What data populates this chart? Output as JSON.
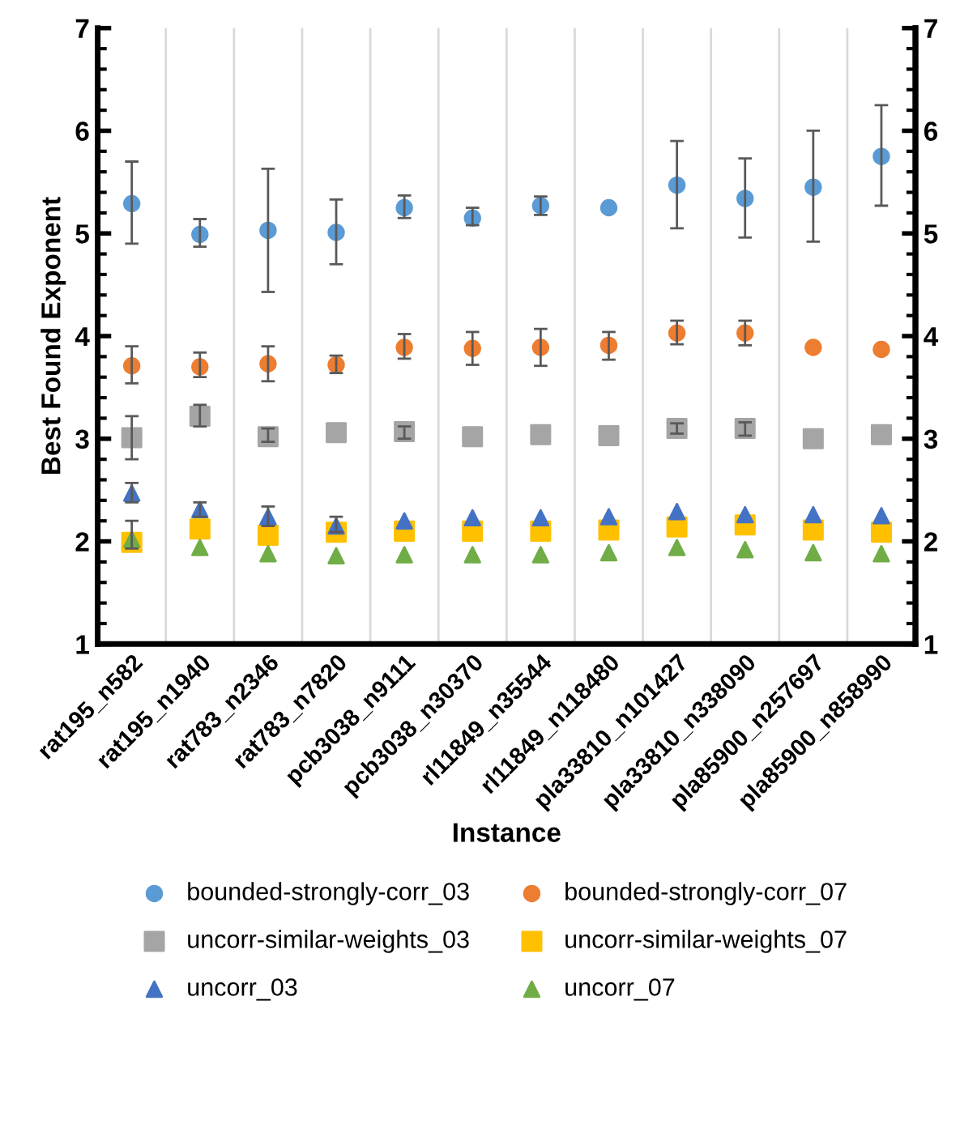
{
  "chart_data": {
    "type": "scatter",
    "xlabel": "Instance",
    "ylabel": "Best Found Exponent",
    "categories": [
      "rat195_n582",
      "rat195_n1940",
      "rat783_n2346",
      "rat783_n7820",
      "pcb3038_n9111",
      "pcb3038_n30370",
      "rl11849_n35544",
      "rl11849_n118480",
      "pla33810_n101427",
      "pla33810_n338090",
      "pla85900_n257697",
      "pla85900_n858990"
    ],
    "series": [
      {
        "name": "bounded-strongly-corr_03",
        "color": "#5b9bd5",
        "marker": "circle",
        "values": [
          5.29,
          4.99,
          5.03,
          5.01,
          5.25,
          5.15,
          5.27,
          5.25,
          5.47,
          5.34,
          5.45,
          5.75
        ],
        "errors": [
          [
            4.9,
            5.7
          ],
          [
            4.87,
            5.14
          ],
          [
            4.43,
            5.63
          ],
          [
            4.7,
            5.33
          ],
          [
            5.15,
            5.37
          ],
          [
            5.08,
            5.25
          ],
          [
            5.18,
            5.36
          ],
          null,
          [
            5.05,
            5.9
          ],
          [
            4.96,
            5.73
          ],
          [
            4.92,
            6.0
          ],
          [
            5.27,
            6.25
          ]
        ]
      },
      {
        "name": "bounded-strongly-corr_07",
        "color": "#ed7d31",
        "marker": "circle",
        "values": [
          3.71,
          3.7,
          3.73,
          3.72,
          3.89,
          3.88,
          3.89,
          3.91,
          4.03,
          4.03,
          3.89,
          3.87
        ],
        "errors": [
          [
            3.54,
            3.9
          ],
          [
            3.6,
            3.84
          ],
          [
            3.56,
            3.9
          ],
          [
            3.64,
            3.81
          ],
          [
            3.78,
            4.02
          ],
          [
            3.72,
            4.04
          ],
          [
            3.71,
            4.07
          ],
          [
            3.77,
            4.04
          ],
          [
            3.92,
            4.15
          ],
          [
            3.91,
            4.15
          ],
          null,
          null
        ]
      },
      {
        "name": "uncorr-similar-weights_03",
        "color": "#a5a5a5",
        "marker": "square",
        "values": [
          3.01,
          3.22,
          3.02,
          3.06,
          3.07,
          3.02,
          3.04,
          3.03,
          3.1,
          3.1,
          3.0,
          3.04
        ],
        "errors": [
          [
            2.8,
            3.22
          ],
          [
            3.12,
            3.33
          ],
          [
            2.97,
            3.1
          ],
          null,
          [
            3.0,
            3.12
          ],
          null,
          null,
          null,
          [
            3.05,
            3.15
          ],
          [
            3.03,
            3.16
          ],
          null,
          null
        ]
      },
      {
        "name": "uncorr-similar-weights_07",
        "color": "#ffc000",
        "marker": "square",
        "values": [
          1.99,
          2.12,
          2.06,
          2.09,
          2.1,
          2.1,
          2.1,
          2.11,
          2.14,
          2.16,
          2.11,
          2.09
        ],
        "errors": [
          null,
          null,
          null,
          null,
          null,
          null,
          null,
          null,
          null,
          null,
          null,
          null
        ]
      },
      {
        "name": "uncorr_03",
        "color": "#4472c4",
        "marker": "triangle",
        "values": [
          2.47,
          2.31,
          2.24,
          2.15,
          2.2,
          2.23,
          2.23,
          2.24,
          2.29,
          2.26,
          2.26,
          2.25
        ],
        "errors": [
          [
            2.38,
            2.57
          ],
          [
            2.24,
            2.38
          ],
          [
            2.15,
            2.34
          ],
          [
            2.09,
            2.24
          ],
          null,
          null,
          null,
          null,
          null,
          null,
          null,
          null
        ]
      },
      {
        "name": "uncorr_07",
        "color": "#70ad47",
        "marker": "triangle",
        "values": [
          2.02,
          1.94,
          1.88,
          1.86,
          1.87,
          1.87,
          1.87,
          1.89,
          1.94,
          1.92,
          1.89,
          1.88
        ],
        "errors": [
          [
            1.93,
            2.2
          ],
          null,
          null,
          null,
          null,
          null,
          null,
          null,
          null,
          null,
          null,
          null
        ]
      }
    ],
    "ylim": [
      1,
      7
    ],
    "yticks": [
      1,
      2,
      3,
      4,
      5,
      6,
      7
    ],
    "y2lim": [
      1,
      7
    ],
    "y2ticks": [
      1,
      2,
      3,
      4,
      5,
      6,
      7
    ],
    "grid": "x",
    "legend": "bottom"
  }
}
